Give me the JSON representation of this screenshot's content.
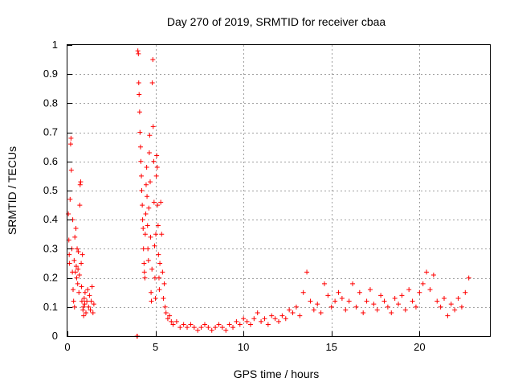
{
  "chart_data": {
    "type": "scatter",
    "title": "Day 270 of 2019, SRMTID for receiver cbaa",
    "xlabel": "GPS time / hours",
    "ylabel": "SRMTID / TECUs",
    "xlim": [
      0,
      24
    ],
    "ylim": [
      0,
      1
    ],
    "xticks": [
      0,
      5,
      10,
      15,
      20
    ],
    "yticks": [
      0,
      0.1,
      0.2,
      0.3,
      0.4,
      0.5,
      0.6,
      0.7,
      0.8,
      0.9,
      1
    ],
    "grid": true,
    "marker": "+",
    "series": [
      {
        "name": "SRMTID",
        "color": "#ff0000",
        "points": [
          [
            0.05,
            0.42
          ],
          [
            0.08,
            0.33
          ],
          [
            0.1,
            0.28
          ],
          [
            0.12,
            0.25
          ],
          [
            0.15,
            0.47
          ],
          [
            0.18,
            0.66
          ],
          [
            0.2,
            0.68
          ],
          [
            0.22,
            0.57
          ],
          [
            0.25,
            0.3
          ],
          [
            0.28,
            0.22
          ],
          [
            0.3,
            0.4
          ],
          [
            0.32,
            0.16
          ],
          [
            0.35,
            0.12
          ],
          [
            0.38,
            0.26
          ],
          [
            0.4,
            0.1
          ],
          [
            0.42,
            0.34
          ],
          [
            0.45,
            0.22
          ],
          [
            0.48,
            0.37
          ],
          [
            0.5,
            0.24
          ],
          [
            0.52,
            0.2
          ],
          [
            0.55,
            0.3
          ],
          [
            0.58,
            0.18
          ],
          [
            0.6,
            0.23
          ],
          [
            0.62,
            0.29
          ],
          [
            0.65,
            0.15
          ],
          [
            0.68,
            0.21
          ],
          [
            0.7,
            0.45
          ],
          [
            0.72,
            0.52
          ],
          [
            0.75,
            0.53
          ],
          [
            0.78,
            0.25
          ],
          [
            0.8,
            0.17
          ],
          [
            0.82,
            0.12
          ],
          [
            0.85,
            0.28
          ],
          [
            0.88,
            0.09
          ],
          [
            0.9,
            0.1
          ],
          [
            0.92,
            0.07
          ],
          [
            0.95,
            0.13
          ],
          [
            0.98,
            0.11
          ],
          [
            1.0,
            0.15
          ],
          [
            1.05,
            0.08
          ],
          [
            1.1,
            0.12
          ],
          [
            1.15,
            0.16
          ],
          [
            1.2,
            0.1
          ],
          [
            1.25,
            0.14
          ],
          [
            1.3,
            0.09
          ],
          [
            1.35,
            0.12
          ],
          [
            1.4,
            0.17
          ],
          [
            1.45,
            0.08
          ],
          [
            1.5,
            0.11
          ],
          [
            3.95,
            0.0
          ],
          [
            3.97,
            0.0
          ],
          [
            4.0,
            0.98
          ],
          [
            4.03,
            0.97
          ],
          [
            4.05,
            0.87
          ],
          [
            4.07,
            0.83
          ],
          [
            4.1,
            0.77
          ],
          [
            4.12,
            0.7
          ],
          [
            4.15,
            0.65
          ],
          [
            4.17,
            0.6
          ],
          [
            4.2,
            0.55
          ],
          [
            4.22,
            0.5
          ],
          [
            4.25,
            0.45
          ],
          [
            4.27,
            0.4
          ],
          [
            4.3,
            0.37
          ],
          [
            4.32,
            0.3
          ],
          [
            4.35,
            0.25
          ],
          [
            4.37,
            0.22
          ],
          [
            4.4,
            0.2
          ],
          [
            4.42,
            0.35
          ],
          [
            4.45,
            0.42
          ],
          [
            4.47,
            0.52
          ],
          [
            4.5,
            0.58
          ],
          [
            4.52,
            0.48
          ],
          [
            4.55,
            0.38
          ],
          [
            4.57,
            0.3
          ],
          [
            4.6,
            0.26
          ],
          [
            4.62,
            0.44
          ],
          [
            4.65,
            0.63
          ],
          [
            4.67,
            0.69
          ],
          [
            4.7,
            0.53
          ],
          [
            4.72,
            0.34
          ],
          [
            4.75,
            0.15
          ],
          [
            4.77,
            0.12
          ],
          [
            4.8,
            0.23
          ],
          [
            4.82,
            0.87
          ],
          [
            4.85,
            0.95
          ],
          [
            4.87,
            0.72
          ],
          [
            4.9,
            0.6
          ],
          [
            4.92,
            0.46
          ],
          [
            4.95,
            0.31
          ],
          [
            4.97,
            0.2
          ],
          [
            5.0,
            0.13
          ],
          [
            5.02,
            0.35
          ],
          [
            5.05,
            0.55
          ],
          [
            5.07,
            0.62
          ],
          [
            5.1,
            0.58
          ],
          [
            5.12,
            0.45
          ],
          [
            5.15,
            0.38
          ],
          [
            5.17,
            0.28
          ],
          [
            5.2,
            0.2
          ],
          [
            5.22,
            0.16
          ],
          [
            5.25,
            0.25
          ],
          [
            5.3,
            0.46
          ],
          [
            5.35,
            0.35
          ],
          [
            5.4,
            0.22
          ],
          [
            5.45,
            0.13
          ],
          [
            5.5,
            0.18
          ],
          [
            5.55,
            0.1
          ],
          [
            5.6,
            0.08
          ],
          [
            5.7,
            0.06
          ],
          [
            5.8,
            0.07
          ],
          [
            5.9,
            0.05
          ],
          [
            6.0,
            0.04
          ],
          [
            6.2,
            0.05
          ],
          [
            6.4,
            0.03
          ],
          [
            6.6,
            0.04
          ],
          [
            6.8,
            0.03
          ],
          [
            7.0,
            0.04
          ],
          [
            7.2,
            0.03
          ],
          [
            7.4,
            0.02
          ],
          [
            7.6,
            0.03
          ],
          [
            7.8,
            0.04
          ],
          [
            8.0,
            0.03
          ],
          [
            8.2,
            0.02
          ],
          [
            8.4,
            0.03
          ],
          [
            8.6,
            0.04
          ],
          [
            8.8,
            0.03
          ],
          [
            9.0,
            0.02
          ],
          [
            9.2,
            0.04
          ],
          [
            9.4,
            0.03
          ],
          [
            9.6,
            0.05
          ],
          [
            9.8,
            0.04
          ],
          [
            10.0,
            0.06
          ],
          [
            10.2,
            0.05
          ],
          [
            10.4,
            0.04
          ],
          [
            10.6,
            0.06
          ],
          [
            10.8,
            0.08
          ],
          [
            11.0,
            0.05
          ],
          [
            11.2,
            0.06
          ],
          [
            11.4,
            0.04
          ],
          [
            11.6,
            0.07
          ],
          [
            11.8,
            0.06
          ],
          [
            12.0,
            0.05
          ],
          [
            12.2,
            0.07
          ],
          [
            12.4,
            0.06
          ],
          [
            12.6,
            0.09
          ],
          [
            12.8,
            0.08
          ],
          [
            13.0,
            0.1
          ],
          [
            13.2,
            0.07
          ],
          [
            13.4,
            0.15
          ],
          [
            13.6,
            0.22
          ],
          [
            13.8,
            0.12
          ],
          [
            14.0,
            0.09
          ],
          [
            14.2,
            0.11
          ],
          [
            14.4,
            0.08
          ],
          [
            14.6,
            0.18
          ],
          [
            14.8,
            0.14
          ],
          [
            15.0,
            0.1
          ],
          [
            15.2,
            0.12
          ],
          [
            15.4,
            0.15
          ],
          [
            15.6,
            0.13
          ],
          [
            15.8,
            0.09
          ],
          [
            16.0,
            0.12
          ],
          [
            16.2,
            0.18
          ],
          [
            16.4,
            0.1
          ],
          [
            16.6,
            0.15
          ],
          [
            16.8,
            0.08
          ],
          [
            17.0,
            0.12
          ],
          [
            17.2,
            0.16
          ],
          [
            17.4,
            0.11
          ],
          [
            17.6,
            0.09
          ],
          [
            17.8,
            0.14
          ],
          [
            18.0,
            0.12
          ],
          [
            18.2,
            0.1
          ],
          [
            18.4,
            0.08
          ],
          [
            18.6,
            0.13
          ],
          [
            18.8,
            0.11
          ],
          [
            19.0,
            0.14
          ],
          [
            19.2,
            0.09
          ],
          [
            19.4,
            0.16
          ],
          [
            19.6,
            0.12
          ],
          [
            19.8,
            0.1
          ],
          [
            20.0,
            0.15
          ],
          [
            20.2,
            0.18
          ],
          [
            20.4,
            0.22
          ],
          [
            20.6,
            0.16
          ],
          [
            20.8,
            0.21
          ],
          [
            21.0,
            0.12
          ],
          [
            21.2,
            0.1
          ],
          [
            21.4,
            0.13
          ],
          [
            21.6,
            0.07
          ],
          [
            21.8,
            0.11
          ],
          [
            22.0,
            0.09
          ],
          [
            22.2,
            0.13
          ],
          [
            22.4,
            0.1
          ],
          [
            22.6,
            0.15
          ],
          [
            22.8,
            0.2
          ]
        ]
      }
    ]
  }
}
